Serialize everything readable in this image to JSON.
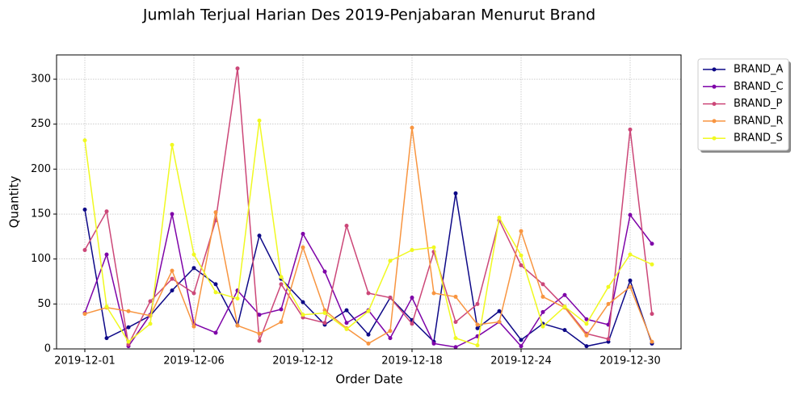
{
  "chart_data": {
    "type": "line",
    "title": "Jumlah Terjual Harian Des 2019-Penjabaran Menurut Brand",
    "x_label": "Order Date",
    "y_label": "Quantity",
    "categories": [
      "2019-12-01",
      null,
      null,
      null,
      null,
      "2019-12-06",
      null,
      null,
      null,
      null,
      "2019-12-12",
      null,
      null,
      null,
      null,
      "2019-12-18",
      null,
      null,
      null,
      null,
      "2019-12-24",
      null,
      null,
      null,
      null,
      "2019-12-30",
      null
    ],
    "series": [
      {
        "name": "BRAND_A",
        "color": "#0d0887",
        "values": [
          155,
          12,
          24,
          37,
          65,
          90,
          72,
          26,
          126,
          78,
          52,
          27,
          43,
          16,
          57,
          32,
          8,
          173,
          23,
          42,
          10,
          28,
          21,
          3,
          8,
          76,
          6
        ]
      },
      {
        "name": "BRAND_C",
        "color": "#7e03a8",
        "values": [
          40,
          105,
          3,
          38,
          150,
          28,
          18,
          65,
          38,
          44,
          128,
          86,
          29,
          43,
          12,
          57,
          6,
          2,
          14,
          30,
          3,
          41,
          60,
          33,
          27,
          149,
          117
        ]
      },
      {
        "name": "BRAND_P",
        "color": "#cc4778",
        "values": [
          110,
          153,
          5,
          53,
          78,
          62,
          143,
          312,
          9,
          72,
          35,
          29,
          137,
          62,
          57,
          28,
          108,
          30,
          50,
          143,
          93,
          72,
          47,
          17,
          11,
          244,
          39
        ]
      },
      {
        "name": "BRAND_R",
        "color": "#f89540",
        "values": [
          39,
          46,
          42,
          37,
          87,
          25,
          152,
          26,
          17,
          30,
          113,
          43,
          23,
          6,
          20,
          246,
          62,
          58,
          27,
          30,
          131,
          58,
          46,
          15,
          50,
          69,
          8
        ]
      },
      {
        "name": "BRAND_S",
        "color": "#f0f921",
        "values": [
          232,
          47,
          8,
          28,
          227,
          105,
          63,
          56,
          254,
          80,
          38,
          40,
          22,
          42,
          98,
          110,
          113,
          12,
          4,
          146,
          104,
          25,
          47,
          28,
          69,
          105,
          94
        ]
      }
    ],
    "ylim": [
      0,
      327
    ],
    "yticks": [
      0,
      50,
      100,
      150,
      200,
      250,
      300
    ],
    "grid": true,
    "legend": "right"
  }
}
